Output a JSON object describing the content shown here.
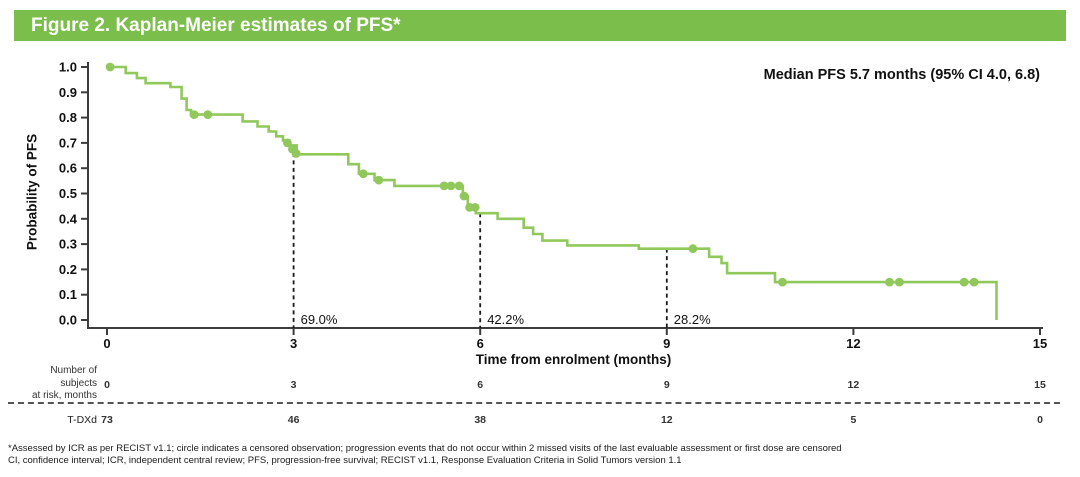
{
  "header": {
    "title": "Figure 2. Kaplan-Meier estimates of PFS*",
    "bar_color": "#7CBE4B"
  },
  "footnotes": [
    "*Assessed by ICR as per RECIST v1.1; circle indicates a censored observation; progression events that do not occur within 2 missed visits of the last evaluable assessment or first dose are censored",
    "CI, confidence interval; ICR, independent central review; PFS, progression-free survival; RECIST v1.1, Response Evaluation Criteria in Solid Tumors version 1.1"
  ],
  "chart_data": {
    "type": "line",
    "subtype": "kaplan-meier-step",
    "title": "Figure 2. Kaplan-Meier estimates of PFS*",
    "xlabel": "Time from enrolment (months)",
    "ylabel": "Probability of PFS",
    "annotation": "Median PFS 5.7 months (95% CI 4.0, 6.8)",
    "xlim": [
      0,
      15
    ],
    "ylim": [
      0.0,
      1.0
    ],
    "xticks": [
      0,
      3,
      6,
      9,
      12,
      15
    ],
    "yticks": [
      "1.0",
      "0.9",
      "0.8",
      "0.7",
      "0.6",
      "0.5",
      "0.4",
      "0.3",
      "0.2",
      "0.1",
      "0.0"
    ],
    "grid": false,
    "legend_position": "none",
    "curve_color": "#90C85C",
    "axis_color": "#3C3C3C",
    "reference_line_color": "#1a1a1a",
    "series": [
      {
        "name": "T-DXd",
        "step_points": [
          [
            0.0,
            1.0
          ],
          [
            0.3,
            0.976
          ],
          [
            0.48,
            0.956
          ],
          [
            0.62,
            0.936
          ],
          [
            1.02,
            0.921
          ],
          [
            1.2,
            0.875
          ],
          [
            1.28,
            0.83
          ],
          [
            1.35,
            0.812
          ],
          [
            2.18,
            0.785
          ],
          [
            2.42,
            0.765
          ],
          [
            2.6,
            0.745
          ],
          [
            2.72,
            0.726
          ],
          [
            2.83,
            0.71
          ],
          [
            2.93,
            0.69
          ],
          [
            3.05,
            0.655
          ],
          [
            3.88,
            0.616
          ],
          [
            4.05,
            0.578
          ],
          [
            4.3,
            0.553
          ],
          [
            4.62,
            0.53
          ],
          [
            5.72,
            0.49
          ],
          [
            5.8,
            0.445
          ],
          [
            5.93,
            0.422
          ],
          [
            6.28,
            0.4
          ],
          [
            6.7,
            0.365
          ],
          [
            6.85,
            0.34
          ],
          [
            7.0,
            0.314
          ],
          [
            7.4,
            0.295
          ],
          [
            8.55,
            0.282
          ],
          [
            9.68,
            0.25
          ],
          [
            9.88,
            0.225
          ],
          [
            9.97,
            0.185
          ],
          [
            10.74,
            0.15
          ],
          [
            14.3,
            0.0
          ]
        ]
      }
    ],
    "censor_marks": [
      [
        0.05,
        1.0
      ],
      [
        1.4,
        0.812
      ],
      [
        1.62,
        0.812
      ],
      [
        2.9,
        0.7
      ],
      [
        2.98,
        0.675
      ],
      [
        3.04,
        0.658
      ],
      [
        4.12,
        0.578
      ],
      [
        4.37,
        0.553
      ],
      [
        5.42,
        0.53
      ],
      [
        5.53,
        0.53
      ],
      [
        5.66,
        0.53
      ],
      [
        5.74,
        0.49
      ],
      [
        5.83,
        0.445
      ],
      [
        5.92,
        0.445
      ],
      [
        9.42,
        0.282
      ],
      [
        10.86,
        0.15
      ],
      [
        12.58,
        0.15
      ],
      [
        12.74,
        0.15
      ],
      [
        13.78,
        0.15
      ],
      [
        13.94,
        0.15
      ]
    ],
    "reference_lines": [
      {
        "x": 3,
        "y": 0.69,
        "label": "69.0%"
      },
      {
        "x": 6,
        "y": 0.422,
        "label": "42.2%"
      },
      {
        "x": 9,
        "y": 0.282,
        "label": "28.2%"
      }
    ],
    "at_risk": {
      "row_header_lines": [
        "Number of",
        "subjects",
        "at risk, months"
      ],
      "group": "T-DXd",
      "months": [
        "0",
        "3",
        "6",
        "9",
        "12",
        "15"
      ],
      "counts": [
        "73",
        "46",
        "38",
        "12",
        "5",
        "0"
      ]
    }
  }
}
